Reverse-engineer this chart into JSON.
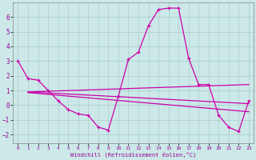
{
  "xlabel": "Windchill (Refroidissement éolien,°C)",
  "background_color": "#cce8e8",
  "grid_color": "#aacccc",
  "line_color": "#cc00aa",
  "xlim": [
    -0.5,
    23.5
  ],
  "ylim": [
    -2.6,
    7.0
  ],
  "xticks": [
    0,
    1,
    2,
    3,
    4,
    5,
    6,
    7,
    8,
    9,
    10,
    11,
    12,
    13,
    14,
    15,
    16,
    17,
    18,
    19,
    20,
    21,
    22,
    23
  ],
  "yticks": [
    -2,
    -1,
    0,
    1,
    2,
    3,
    4,
    5,
    6
  ],
  "line1_x": [
    0,
    1,
    2,
    3,
    4,
    5,
    6,
    7,
    8,
    9,
    10,
    11,
    12,
    13,
    14,
    15,
    16,
    17,
    18,
    19,
    20,
    21,
    22,
    23
  ],
  "line1_y": [
    3.0,
    1.8,
    1.7,
    1.0,
    0.3,
    -0.3,
    -0.6,
    -0.7,
    -1.5,
    -1.7,
    0.6,
    3.1,
    3.6,
    5.4,
    6.5,
    6.6,
    6.6,
    3.2,
    1.4,
    1.4,
    -0.7,
    -1.5,
    -1.8,
    0.3
  ],
  "line2_x": [
    1,
    23
  ],
  "line2_y": [
    0.9,
    1.4
  ],
  "line3_x": [
    1,
    23
  ],
  "line3_y": [
    0.9,
    0.1
  ],
  "line4_x": [
    1,
    23
  ],
  "line4_y": [
    0.85,
    -0.45
  ]
}
